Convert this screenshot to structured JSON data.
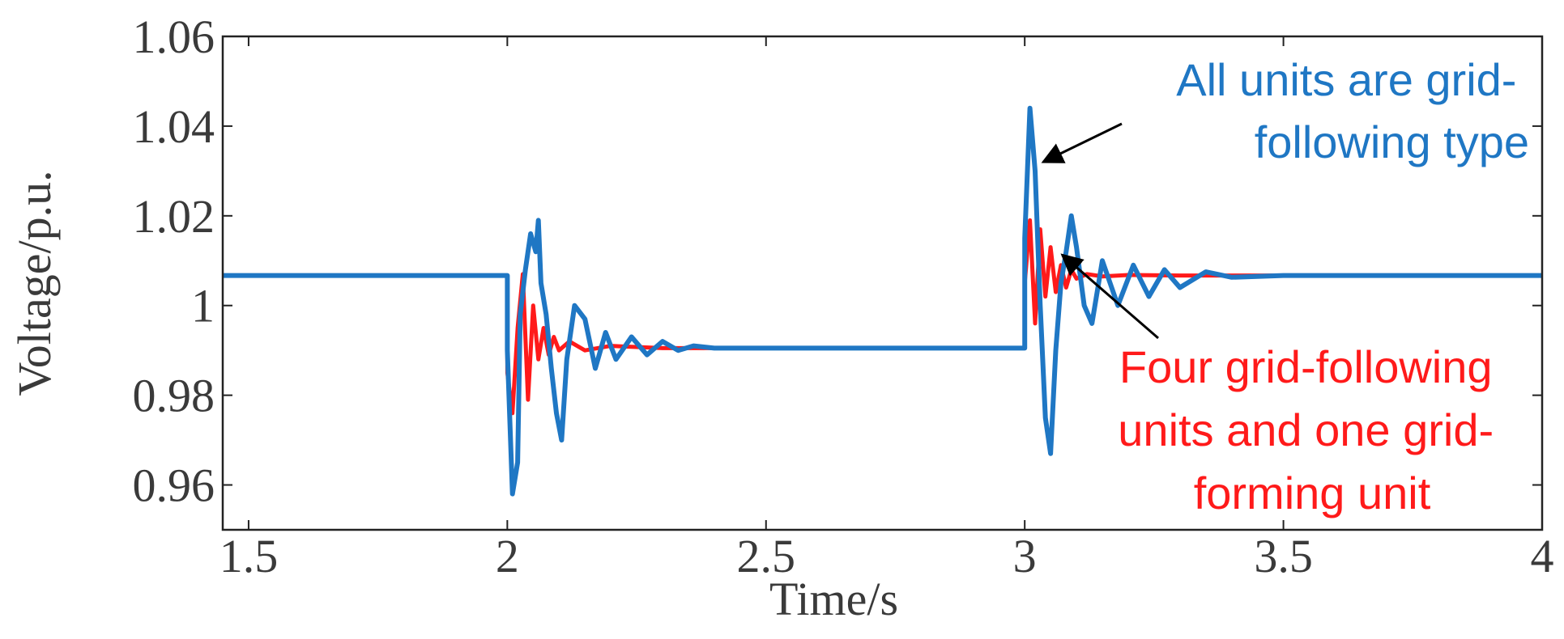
{
  "chart_data": {
    "type": "line",
    "title": "",
    "xlabel": "Time/s",
    "ylabel": "Voltage/p.u.",
    "xlim": [
      1.45,
      4.0
    ],
    "ylim": [
      0.95,
      1.06
    ],
    "x_ticks": [
      1.5,
      2,
      2.5,
      3,
      3.5,
      4
    ],
    "x_tick_labels": [
      "1.5",
      "2",
      "2.5",
      "3",
      "3.5",
      "4"
    ],
    "y_ticks": [
      0.96,
      0.98,
      1.0,
      1.02,
      1.04,
      1.06
    ],
    "y_tick_labels": [
      "0.96",
      "0.98",
      "1",
      "1.02",
      "1.04",
      "1.06"
    ],
    "grid": false,
    "legend": "none",
    "series": [
      {
        "color": "#ff1a1a",
        "x": [
          1.45,
          2.0,
          2.0,
          2.01,
          2.02,
          2.03,
          2.04,
          2.05,
          2.06,
          2.07,
          2.08,
          2.09,
          2.1,
          2.12,
          2.15,
          2.2,
          2.3,
          2.5,
          3.0,
          3.0,
          3.01,
          3.02,
          3.03,
          3.04,
          3.05,
          3.06,
          3.07,
          3.08,
          3.09,
          3.1,
          3.12,
          3.15,
          3.2,
          3.3,
          4.0
        ],
        "y": [
          1.0067,
          1.0067,
          0.985,
          0.976,
          0.995,
          1.007,
          0.979,
          1.0,
          0.988,
          0.995,
          0.989,
          0.993,
          0.99,
          0.992,
          0.99,
          0.991,
          0.9905,
          0.9905,
          0.9905,
          1.005,
          1.019,
          0.996,
          1.017,
          1.002,
          1.013,
          1.003,
          1.009,
          1.004,
          1.008,
          1.006,
          1.007,
          1.0065,
          1.0068,
          1.0067,
          1.0067
        ]
      },
      {
        "color": "#1f77c4",
        "x": [
          1.45,
          2.0,
          2.0,
          2.01,
          2.02,
          2.025,
          2.035,
          2.045,
          2.055,
          2.06,
          2.065,
          2.075,
          2.085,
          2.095,
          2.105,
          2.115,
          2.13,
          2.15,
          2.17,
          2.19,
          2.21,
          2.24,
          2.27,
          2.3,
          2.33,
          2.36,
          2.4,
          2.45,
          2.5,
          3.0,
          3.0,
          3.01,
          3.02,
          3.03,
          3.04,
          3.05,
          3.06,
          3.07,
          3.08,
          3.09,
          3.1,
          3.115,
          3.13,
          3.15,
          3.18,
          3.21,
          3.24,
          3.27,
          3.3,
          3.35,
          3.4,
          3.5,
          4.0
        ],
        "y": [
          1.0067,
          1.0067,
          0.99,
          0.958,
          0.965,
          0.998,
          1.008,
          1.016,
          1.012,
          1.019,
          1.005,
          0.998,
          0.986,
          0.976,
          0.97,
          0.988,
          1.0,
          0.997,
          0.986,
          0.994,
          0.988,
          0.993,
          0.989,
          0.992,
          0.99,
          0.991,
          0.9905,
          0.9905,
          0.9905,
          0.9905,
          1.015,
          1.044,
          1.03,
          1.0,
          0.975,
          0.967,
          0.99,
          1.005,
          1.012,
          1.02,
          1.013,
          1.0,
          0.996,
          1.01,
          1.0,
          1.009,
          1.002,
          1.008,
          1.004,
          1.0075,
          1.0063,
          1.0067,
          1.0067
        ]
      }
    ],
    "annotations": [
      {
        "text_lines": [
          "All units are grid-",
          "following type"
        ],
        "color": "#1f77c4",
        "arrow_to": [
          3.02,
          1.032
        ]
      },
      {
        "text_lines": [
          "Four grid-following",
          "units and one grid-",
          "forming unit"
        ],
        "color": "#ff1a1a",
        "arrow_to": [
          3.06,
          1.012
        ]
      }
    ]
  }
}
